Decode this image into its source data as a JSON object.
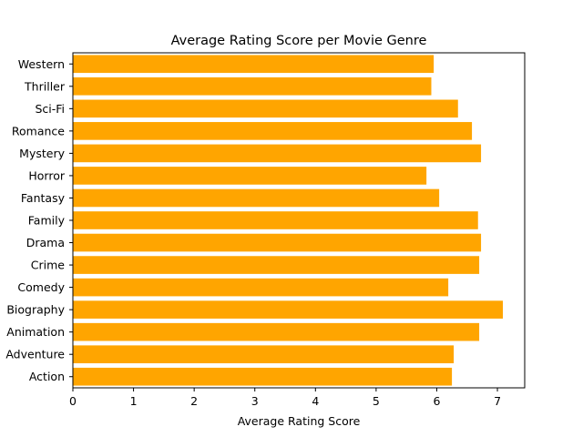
{
  "chart_data": {
    "type": "bar",
    "orientation": "horizontal",
    "title": "Average Rating Score per Movie Genre",
    "xlabel": "Average Rating Score",
    "ylabel": "",
    "categories": [
      "Action",
      "Adventure",
      "Animation",
      "Biography",
      "Comedy",
      "Crime",
      "Drama",
      "Family",
      "Fantasy",
      "Horror",
      "Mystery",
      "Romance",
      "Sci-Fi",
      "Thriller",
      "Western"
    ],
    "values": [
      6.25,
      6.28,
      6.7,
      7.09,
      6.19,
      6.7,
      6.73,
      6.68,
      6.04,
      5.83,
      6.73,
      6.58,
      6.35,
      5.91,
      5.95
    ],
    "xlim": [
      0,
      7.45
    ],
    "xticks": [
      "0",
      "1",
      "2",
      "3",
      "4",
      "5",
      "6",
      "7"
    ],
    "bar_color": "#ffa500",
    "grid": false,
    "legend": "none"
  }
}
